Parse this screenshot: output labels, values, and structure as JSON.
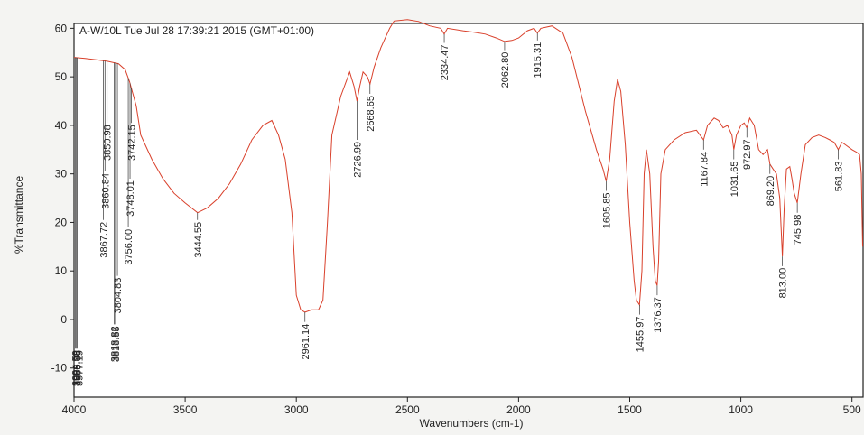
{
  "chart_data": {
    "type": "line",
    "title": "A-W/10L Tue Jul 28 17:39:21 2015 (GMT+01:00)",
    "xlabel": "Wavenumbers (cm-1)",
    "ylabel": "%Transmittance",
    "xlim": [
      4000,
      450
    ],
    "ylim": [
      -16,
      61
    ],
    "x_reversed": true,
    "grid": false,
    "line_color": "#d9402b",
    "axis_color": "#222222",
    "x_ticks": [
      4000,
      3500,
      3000,
      2500,
      2000,
      1500,
      1000,
      500
    ],
    "x_tick_labels": [
      "4000",
      "3500",
      "3000",
      "2500",
      "2000",
      "1500",
      "1000",
      "500"
    ],
    "y_ticks": [
      60,
      50,
      40,
      30,
      20,
      10,
      0,
      -10
    ],
    "y_tick_labels": [
      "60",
      "50",
      "40",
      "30",
      "20",
      "10",
      "0",
      "-10"
    ],
    "series": [
      {
        "name": "",
        "points": [
          [
            4000,
            54
          ],
          [
            3950,
            53.8
          ],
          [
            3900,
            53.5
          ],
          [
            3850,
            53.2
          ],
          [
            3800,
            52.7
          ],
          [
            3770,
            51.5
          ],
          [
            3750,
            49
          ],
          [
            3720,
            44
          ],
          [
            3700,
            38
          ],
          [
            3650,
            33
          ],
          [
            3600,
            29
          ],
          [
            3550,
            26
          ],
          [
            3500,
            24
          ],
          [
            3444.55,
            22
          ],
          [
            3400,
            23
          ],
          [
            3350,
            25
          ],
          [
            3300,
            28
          ],
          [
            3250,
            32
          ],
          [
            3200,
            37
          ],
          [
            3150,
            40
          ],
          [
            3110,
            41
          ],
          [
            3080,
            38
          ],
          [
            3050,
            33
          ],
          [
            3020,
            22
          ],
          [
            3000,
            5
          ],
          [
            2980,
            2
          ],
          [
            2961.14,
            1.5
          ],
          [
            2930,
            2
          ],
          [
            2900,
            2
          ],
          [
            2880,
            4
          ],
          [
            2860,
            20
          ],
          [
            2840,
            38
          ],
          [
            2800,
            46
          ],
          [
            2760,
            51
          ],
          [
            2740,
            48
          ],
          [
            2726.99,
            45
          ],
          [
            2715,
            48
          ],
          [
            2700,
            51
          ],
          [
            2680,
            50
          ],
          [
            2668.65,
            48.5
          ],
          [
            2650,
            52
          ],
          [
            2620,
            56
          ],
          [
            2600,
            58
          ],
          [
            2580,
            60
          ],
          [
            2560,
            61.5
          ],
          [
            2500,
            61.8
          ],
          [
            2450,
            61.4
          ],
          [
            2400,
            60.5
          ],
          [
            2350,
            60
          ],
          [
            2334.47,
            58.8
          ],
          [
            2320,
            60
          ],
          [
            2250,
            59.5
          ],
          [
            2200,
            59.2
          ],
          [
            2150,
            58.8
          ],
          [
            2100,
            58
          ],
          [
            2062.8,
            57.3
          ],
          [
            2030,
            57.5
          ],
          [
            2000,
            58
          ],
          [
            1960,
            59.5
          ],
          [
            1930,
            60
          ],
          [
            1915.31,
            59
          ],
          [
            1900,
            60
          ],
          [
            1850,
            60.5
          ],
          [
            1800,
            59
          ],
          [
            1760,
            54
          ],
          [
            1700,
            43
          ],
          [
            1650,
            35
          ],
          [
            1620,
            31
          ],
          [
            1605.85,
            28.5
          ],
          [
            1590,
            33
          ],
          [
            1570,
            45
          ],
          [
            1555,
            49.5
          ],
          [
            1540,
            47
          ],
          [
            1520,
            36
          ],
          [
            1500,
            20
          ],
          [
            1480,
            8
          ],
          [
            1470,
            4
          ],
          [
            1455.97,
            3
          ],
          [
            1445,
            10
          ],
          [
            1435,
            30
          ],
          [
            1425,
            35
          ],
          [
            1410,
            30
          ],
          [
            1395,
            15
          ],
          [
            1385,
            8
          ],
          [
            1376.37,
            7
          ],
          [
            1370,
            12
          ],
          [
            1360,
            30
          ],
          [
            1340,
            35
          ],
          [
            1300,
            37
          ],
          [
            1250,
            38.5
          ],
          [
            1200,
            39
          ],
          [
            1167.84,
            37
          ],
          [
            1150,
            40
          ],
          [
            1120,
            41.5
          ],
          [
            1100,
            41
          ],
          [
            1080,
            39.5
          ],
          [
            1060,
            40
          ],
          [
            1040,
            38
          ],
          [
            1031.65,
            35
          ],
          [
            1020,
            38
          ],
          [
            1000,
            40
          ],
          [
            985,
            40.5
          ],
          [
            972.97,
            39.5
          ],
          [
            960,
            41.5
          ],
          [
            940,
            40
          ],
          [
            920,
            35
          ],
          [
            900,
            34
          ],
          [
            880,
            35
          ],
          [
            869.2,
            32
          ],
          [
            855,
            31
          ],
          [
            840,
            30
          ],
          [
            825,
            25
          ],
          [
            813,
            13
          ],
          [
            805,
            23
          ],
          [
            795,
            31
          ],
          [
            780,
            31.5
          ],
          [
            770,
            29
          ],
          [
            760,
            26
          ],
          [
            745.98,
            24
          ],
          [
            730,
            30
          ],
          [
            710,
            36
          ],
          [
            680,
            37.5
          ],
          [
            650,
            38
          ],
          [
            620,
            37.5
          ],
          [
            600,
            37
          ],
          [
            580,
            36.5
          ],
          [
            561.83,
            35
          ],
          [
            545,
            36.5
          ],
          [
            530,
            36
          ],
          [
            500,
            35
          ],
          [
            480,
            34.5
          ],
          [
            466,
            34
          ],
          [
            458,
            30
          ],
          [
            452,
            15
          ]
        ]
      }
    ],
    "peak_labels": [
      {
        "x": 3994.59,
        "label": "3994.59",
        "y": -6
      },
      {
        "x": 3988.98,
        "label": "3988.98",
        "y": -6
      },
      {
        "x": 3985.66,
        "label": "3985.66",
        "y": -6
      },
      {
        "x": 3977.19,
        "label": "3977.19",
        "y": -6
      },
      {
        "x": 3867.72,
        "label": "3867.72",
        "y": 20.5
      },
      {
        "x": 3860.84,
        "label": "3860.84",
        "y": 30.5
      },
      {
        "x": 3850.98,
        "label": "3850.98",
        "y": 40.5
      },
      {
        "x": 3818.82,
        "label": "3818.82",
        "y": -1
      },
      {
        "x": 3813.55,
        "label": "3813.55",
        "y": -1
      },
      {
        "x": 3804.83,
        "label": "3804.83",
        "y": 9
      },
      {
        "x": 3756.0,
        "label": "3756.00",
        "y": 19
      },
      {
        "x": 3748.01,
        "label": "3748.01",
        "y": 29
      },
      {
        "x": 3742.15,
        "label": "3742.15",
        "y": 40.5
      },
      {
        "x": 3444.55,
        "label": "3444.55",
        "y": 20.5
      },
      {
        "x": 2961.14,
        "label": "2961.14",
        "y": -0.5
      },
      {
        "x": 2726.99,
        "label": "2726.99",
        "y": 37
      },
      {
        "x": 2668.65,
        "label": "2668.65",
        "y": 46.5
      },
      {
        "x": 2334.47,
        "label": "2334.47",
        "y": 57
      },
      {
        "x": 2062.8,
        "label": "2062.80",
        "y": 55.5
      },
      {
        "x": 1915.31,
        "label": "1915.31",
        "y": 57.5
      },
      {
        "x": 1605.85,
        "label": "1605.85",
        "y": 26.5
      },
      {
        "x": 1455.97,
        "label": "1455.97",
        "y": 1
      },
      {
        "x": 1376.37,
        "label": "1376.37",
        "y": 5
      },
      {
        "x": 1167.84,
        "label": "1167.84",
        "y": 35
      },
      {
        "x": 1031.65,
        "label": "1031.65",
        "y": 33
      },
      {
        "x": 972.97,
        "label": "972.97",
        "y": 37.5
      },
      {
        "x": 869.2,
        "label": "869.20",
        "y": 30
      },
      {
        "x": 813.0,
        "label": "813.00",
        "y": 11
      },
      {
        "x": 745.98,
        "label": "745.98",
        "y": 22
      },
      {
        "x": 561.83,
        "label": "561.83",
        "y": 33
      }
    ]
  }
}
